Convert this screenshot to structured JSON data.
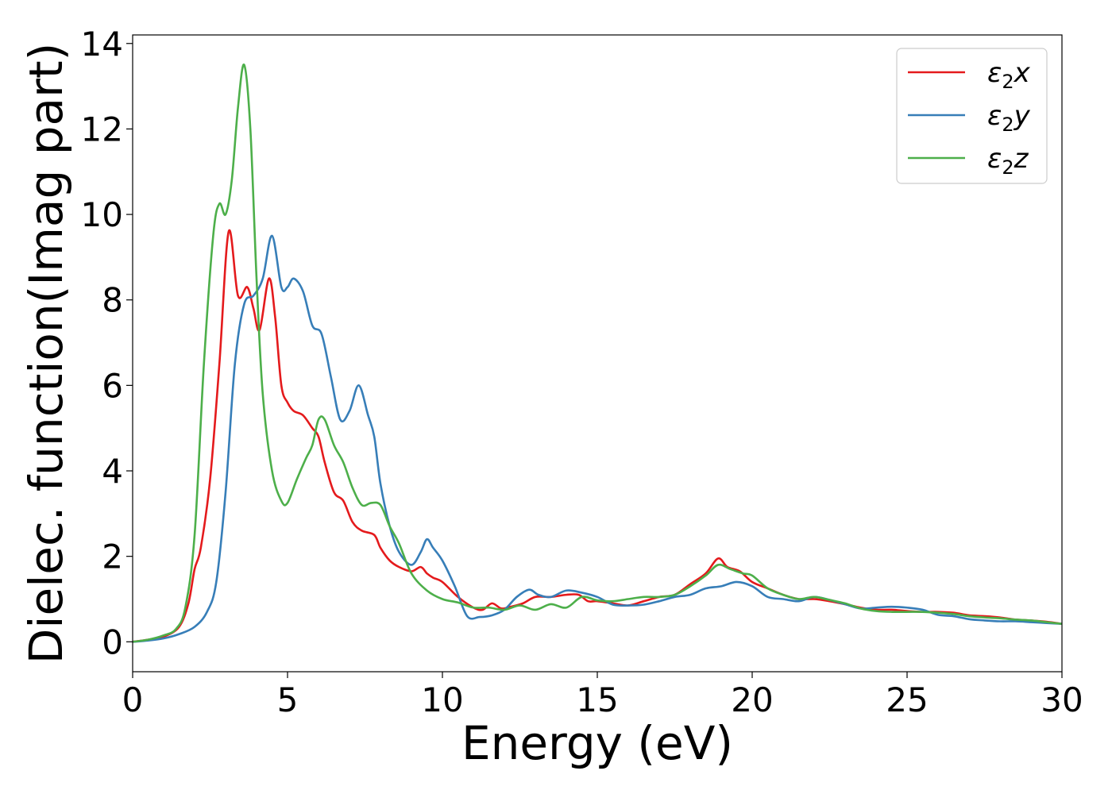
{
  "chart_data": {
    "type": "line",
    "xlabel": "Energy (eV)",
    "ylabel": "Dielec. function(Imag part)",
    "xlim": [
      0,
      30
    ],
    "ylim": [
      -0.7,
      14.2
    ],
    "xticks": [
      "0",
      "5",
      "10",
      "15",
      "20",
      "25",
      "30"
    ],
    "yticks": [
      "0",
      "2",
      "4",
      "6",
      "8",
      "10",
      "12",
      "14"
    ],
    "grid": false,
    "legend_position": "top-right",
    "series": [
      {
        "name": "ε2x",
        "legend": {
          "symbol": "ε",
          "sub": "2",
          "var": "x"
        },
        "color": "#e41a1c",
        "x": [
          0,
          0.5,
          1,
          1.5,
          1.8,
          2.0,
          2.2,
          2.5,
          2.8,
          3.1,
          3.4,
          3.7,
          3.9,
          4.1,
          4.4,
          4.6,
          4.8,
          5.0,
          5.2,
          5.5,
          5.8,
          6.0,
          6.2,
          6.5,
          6.8,
          7.1,
          7.4,
          7.8,
          8.0,
          8.3,
          8.6,
          9.0,
          9.3,
          9.5,
          9.7,
          10.0,
          10.5,
          11.0,
          11.3,
          11.6,
          11.9,
          12.2,
          12.6,
          13.0,
          13.5,
          14.0,
          14.4,
          14.7,
          15.0,
          15.5,
          16.0,
          16.5,
          17.0,
          17.5,
          18.0,
          18.5,
          18.9,
          19.2,
          19.6,
          20.0,
          20.5,
          21.0,
          21.5,
          22.0,
          22.5,
          23.0,
          23.5,
          24.0,
          24.5,
          25.0,
          25.5,
          26.0,
          26.5,
          27.0,
          27.5,
          28.0,
          28.5,
          29.0,
          29.5,
          30.0
        ],
        "values": [
          0,
          0.05,
          0.12,
          0.35,
          0.9,
          1.7,
          2.2,
          3.8,
          6.5,
          9.6,
          8.1,
          8.3,
          7.8,
          7.3,
          8.5,
          7.6,
          6.0,
          5.6,
          5.4,
          5.3,
          5.0,
          4.8,
          4.2,
          3.5,
          3.3,
          2.8,
          2.6,
          2.5,
          2.2,
          1.9,
          1.75,
          1.65,
          1.75,
          1.6,
          1.5,
          1.4,
          1.05,
          0.8,
          0.75,
          0.9,
          0.78,
          0.82,
          0.9,
          1.05,
          1.05,
          1.1,
          1.1,
          0.95,
          0.95,
          0.9,
          0.85,
          0.95,
          1.05,
          1.1,
          1.35,
          1.6,
          1.95,
          1.75,
          1.65,
          1.4,
          1.25,
          1.1,
          1.0,
          1.0,
          0.95,
          0.88,
          0.8,
          0.75,
          0.75,
          0.72,
          0.7,
          0.7,
          0.68,
          0.62,
          0.6,
          0.57,
          0.52,
          0.5,
          0.47,
          0.42
        ]
      },
      {
        "name": "ε2y",
        "legend": {
          "symbol": "ε",
          "sub": "2",
          "var": "y"
        },
        "color": "#377eb8",
        "x": [
          0,
          0.5,
          1,
          1.5,
          2.0,
          2.4,
          2.7,
          3.0,
          3.3,
          3.6,
          3.9,
          4.2,
          4.5,
          4.8,
          5.0,
          5.2,
          5.5,
          5.8,
          6.1,
          6.4,
          6.7,
          7.0,
          7.3,
          7.6,
          7.8,
          8.0,
          8.3,
          8.6,
          9.0,
          9.3,
          9.5,
          9.7,
          10.0,
          10.4,
          10.8,
          11.2,
          11.6,
          12.0,
          12.4,
          12.8,
          13.1,
          13.5,
          14.0,
          14.5,
          15.0,
          15.5,
          16.0,
          16.5,
          17.0,
          17.5,
          18.0,
          18.5,
          19.0,
          19.5,
          20.0,
          20.5,
          21.0,
          21.5,
          22.0,
          22.5,
          23.0,
          23.5,
          24.0,
          24.5,
          25.0,
          25.5,
          26.0,
          26.5,
          27.0,
          27.5,
          28.0,
          28.5,
          29.0,
          29.5,
          30.0
        ],
        "values": [
          0,
          0.03,
          0.08,
          0.18,
          0.35,
          0.7,
          1.4,
          3.5,
          6.5,
          7.9,
          8.1,
          8.5,
          9.5,
          8.3,
          8.3,
          8.5,
          8.2,
          7.4,
          7.2,
          6.2,
          5.2,
          5.4,
          6.0,
          5.3,
          4.8,
          3.7,
          2.7,
          2.1,
          1.8,
          2.1,
          2.4,
          2.2,
          1.9,
          1.3,
          0.6,
          0.58,
          0.62,
          0.75,
          1.05,
          1.22,
          1.1,
          1.05,
          1.2,
          1.15,
          1.05,
          0.87,
          0.85,
          0.87,
          0.95,
          1.05,
          1.1,
          1.25,
          1.3,
          1.4,
          1.3,
          1.05,
          1.0,
          0.95,
          1.05,
          0.98,
          0.88,
          0.78,
          0.8,
          0.82,
          0.8,
          0.75,
          0.63,
          0.6,
          0.53,
          0.5,
          0.48,
          0.48,
          0.46,
          0.44,
          0.42
        ]
      },
      {
        "name": "ε2z",
        "legend": {
          "symbol": "ε",
          "sub": "2",
          "var": "z"
        },
        "color": "#4daf4a",
        "x": [
          0,
          0.5,
          1,
          1.4,
          1.7,
          2.0,
          2.3,
          2.6,
          2.8,
          3.0,
          3.2,
          3.4,
          3.6,
          3.8,
          4.0,
          4.2,
          4.5,
          4.8,
          5.0,
          5.3,
          5.6,
          5.8,
          6.0,
          6.2,
          6.5,
          6.8,
          7.1,
          7.4,
          7.7,
          8.0,
          8.3,
          8.6,
          9.0,
          9.5,
          10.0,
          10.5,
          11.0,
          11.5,
          12.0,
          12.5,
          13.0,
          13.5,
          14.0,
          14.5,
          15.0,
          15.5,
          16.0,
          16.5,
          17.0,
          17.5,
          18.0,
          18.5,
          18.9,
          19.3,
          19.7,
          20.0,
          20.5,
          21.0,
          21.5,
          22.0,
          22.5,
          23.0,
          23.5,
          24.0,
          24.5,
          25.0,
          25.5,
          26.0,
          26.5,
          27.0,
          27.5,
          28.0,
          28.5,
          29.0,
          29.5,
          30.0
        ],
        "values": [
          0,
          0.05,
          0.15,
          0.3,
          0.8,
          2.5,
          6.5,
          9.5,
          10.25,
          10.0,
          10.8,
          12.5,
          13.5,
          12.0,
          8.5,
          5.8,
          4.0,
          3.3,
          3.25,
          3.8,
          4.3,
          4.6,
          5.2,
          5.2,
          4.6,
          4.2,
          3.6,
          3.2,
          3.25,
          3.2,
          2.7,
          2.3,
          1.6,
          1.2,
          1.0,
          0.92,
          0.8,
          0.8,
          0.75,
          0.85,
          0.75,
          0.88,
          0.8,
          1.05,
          0.97,
          0.95,
          1.0,
          1.05,
          1.05,
          1.1,
          1.3,
          1.55,
          1.8,
          1.7,
          1.6,
          1.55,
          1.25,
          1.1,
          1.0,
          1.05,
          0.98,
          0.9,
          0.78,
          0.72,
          0.7,
          0.7,
          0.7,
          0.68,
          0.65,
          0.6,
          0.57,
          0.55,
          0.52,
          0.5,
          0.46,
          0.42
        ]
      }
    ]
  }
}
